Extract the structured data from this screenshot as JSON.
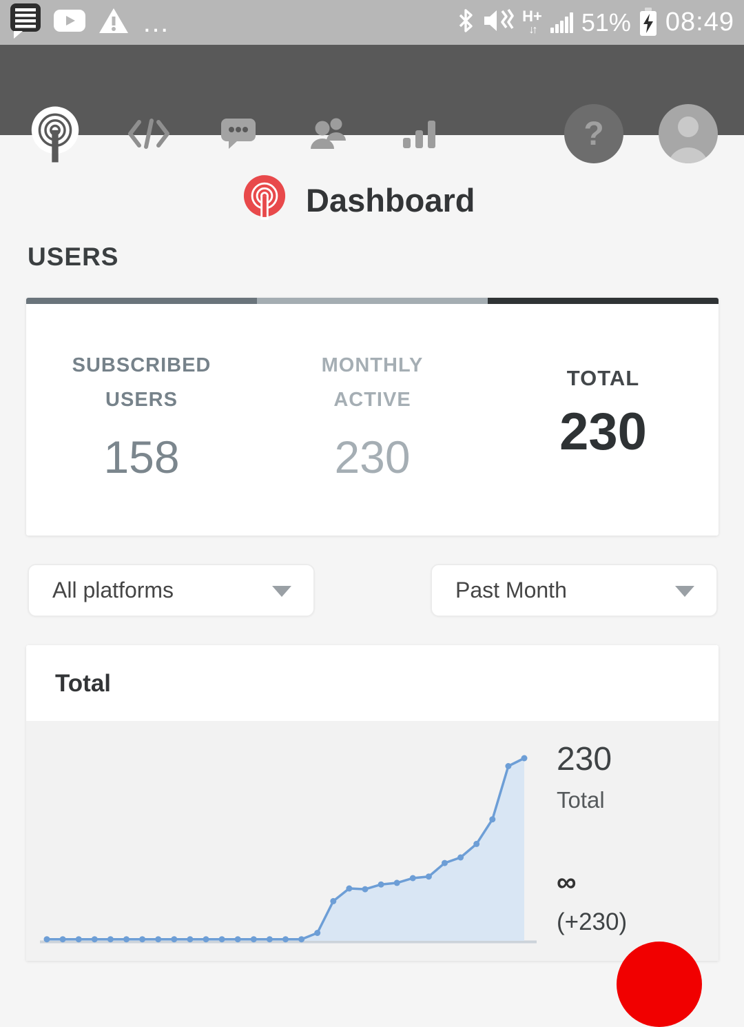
{
  "status_bar": {
    "time": "08:49",
    "battery": "51%",
    "network": "H+",
    "data_arrows": "↓↑",
    "left_icons": [
      "messaging-notification",
      "youtube",
      "warning",
      "more"
    ],
    "right_icons": [
      "bluetooth",
      "mute-vibrate",
      "mobile-data-h-plus",
      "signal-bars",
      "battery-charging"
    ]
  },
  "nav_bar": {
    "items": [
      "onesignal-home",
      "code",
      "messages",
      "users",
      "analytics"
    ],
    "active_item": "onesignal-home",
    "help_label": "?"
  },
  "header": {
    "title": "Dashboard"
  },
  "users": {
    "heading": "USERS",
    "stats": [
      {
        "line1": "SUBSCRIBED",
        "line2": "USERS",
        "value": "158",
        "text_color": "#76828a",
        "value_color": "#7b868d",
        "bar_color": "#6a747b"
      },
      {
        "line1": "MONTHLY",
        "line2": "ACTIVE",
        "value": "230",
        "text_color": "#a5aeb4",
        "value_color": "#a5aeb4",
        "bar_color": "#a4adb2"
      },
      {
        "line1": "TOTAL",
        "line2": "",
        "value": "230",
        "text_color": "#43474a",
        "value_color": "#2e3234",
        "bar_color": "#2f3335"
      }
    ]
  },
  "filters": {
    "platform": {
      "value": "All platforms"
    },
    "period": {
      "value": "Past Month"
    }
  },
  "total_card": {
    "title": "Total",
    "current_value": "230",
    "current_label": "Total",
    "growth_symbol": "∞",
    "growth_delta": "(+230)"
  },
  "chart_data": {
    "type": "area",
    "title": "Total",
    "series": [
      {
        "name": "Total",
        "values": [
          2,
          2,
          2,
          2,
          2,
          2,
          2,
          2,
          2,
          2,
          2,
          2,
          2,
          2,
          2,
          2,
          2,
          10,
          50,
          66,
          65,
          71,
          73,
          79,
          81,
          98,
          105,
          122,
          153,
          220,
          230
        ]
      }
    ],
    "ylim": [
      0,
      230
    ],
    "end_value": 230,
    "grid": false,
    "legend": "none",
    "line_color": "#6d9ed6",
    "fill_color": "#d9e6f4",
    "marker_color": "#6d9ed6",
    "baseline_color": "#ccd3da",
    "background": "#f2f2f2"
  },
  "colors": {
    "brand_red": "#e8494b",
    "fab": "#f10000",
    "navbar_bg": "#595959",
    "statusbar_bg": "#b7b7b7",
    "page_bg": "#f5f5f5"
  }
}
